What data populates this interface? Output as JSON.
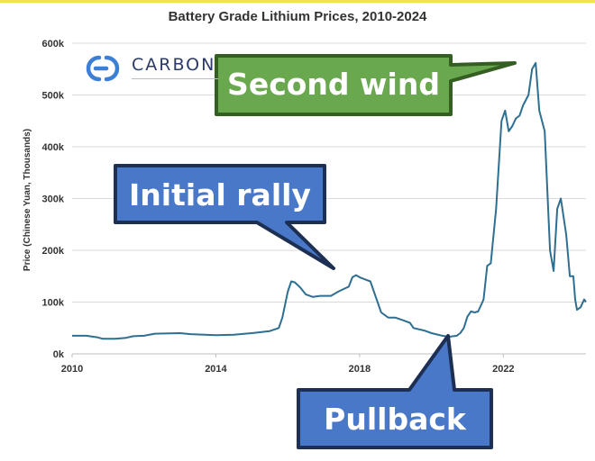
{
  "chart_data": {
    "type": "line",
    "title": "Battery Grade Lithium Prices, 2010-2024",
    "xlabel": "",
    "ylabel": "Price (Chinese Yuan, Thousands)",
    "xlim": [
      2010,
      2024.3
    ],
    "ylim": [
      0,
      600000
    ],
    "x_ticks": [
      2010,
      2014,
      2018,
      2022
    ],
    "x_tick_labels": [
      "2010",
      "2014",
      "2018",
      "2022"
    ],
    "y_ticks": [
      0,
      100000,
      200000,
      300000,
      400000,
      500000,
      600000
    ],
    "y_tick_labels": [
      "0k",
      "100k",
      "200k",
      "300k",
      "400k",
      "500k",
      "600k"
    ],
    "grid": "horizontal",
    "legend": "none",
    "line_color": "#2e6f92",
    "series": [
      {
        "x": [
          2010.0,
          2010.4,
          2010.7,
          2010.85,
          2011.2,
          2011.5,
          2011.7,
          2012.0,
          2012.3,
          2013.0,
          2013.3,
          2014.0,
          2014.5,
          2015.0,
          2015.5,
          2015.75,
          2015.85,
          2016.0,
          2016.1,
          2016.2,
          2016.35,
          2016.5,
          2016.7,
          2016.9,
          2017.2,
          2017.4,
          2017.55,
          2017.7,
          2017.8,
          2017.9,
          2018.0,
          2018.1,
          2018.3,
          2018.4,
          2018.5,
          2018.6,
          2018.8,
          2019.0,
          2019.2,
          2019.4,
          2019.5,
          2019.8,
          2020.0,
          2020.3,
          2020.5,
          2020.7,
          2020.8,
          2020.9,
          2021.0,
          2021.1,
          2021.2,
          2021.3,
          2021.45,
          2021.55,
          2021.65,
          2021.8,
          2021.95,
          2022.05,
          2022.15,
          2022.25,
          2022.35,
          2022.45,
          2022.55,
          2022.7,
          2022.8,
          2022.9,
          2023.0,
          2023.15,
          2023.3,
          2023.4,
          2023.5,
          2023.6,
          2023.75,
          2023.85,
          2023.95,
          2024.0,
          2024.05,
          2024.15,
          2024.25,
          2024.3
        ],
        "y": [
          35000,
          35000,
          32000,
          29000,
          29000,
          31000,
          34000,
          35000,
          39000,
          40000,
          38000,
          36000,
          37000,
          40000,
          44000,
          50000,
          70000,
          120000,
          140000,
          138000,
          128000,
          115000,
          110000,
          112000,
          112000,
          120000,
          125000,
          130000,
          148000,
          152000,
          148000,
          145000,
          140000,
          120000,
          100000,
          80000,
          70000,
          70000,
          65000,
          60000,
          50000,
          45000,
          40000,
          35000,
          33000,
          35000,
          40000,
          50000,
          72000,
          82000,
          80000,
          82000,
          105000,
          170000,
          175000,
          280000,
          450000,
          470000,
          430000,
          440000,
          455000,
          460000,
          480000,
          500000,
          550000,
          562000,
          470000,
          430000,
          200000,
          160000,
          280000,
          300000,
          230000,
          150000,
          150000,
          105000,
          85000,
          90000,
          105000,
          100000
        ]
      }
    ],
    "annotations": [
      {
        "text": "Second wind",
        "color": "#5d9e3d"
      },
      {
        "text": "Initial rally",
        "color": "#4673c4"
      },
      {
        "text": "Pullback",
        "color": "#4673c4"
      }
    ]
  },
  "logo": {
    "text": "CARBON"
  }
}
